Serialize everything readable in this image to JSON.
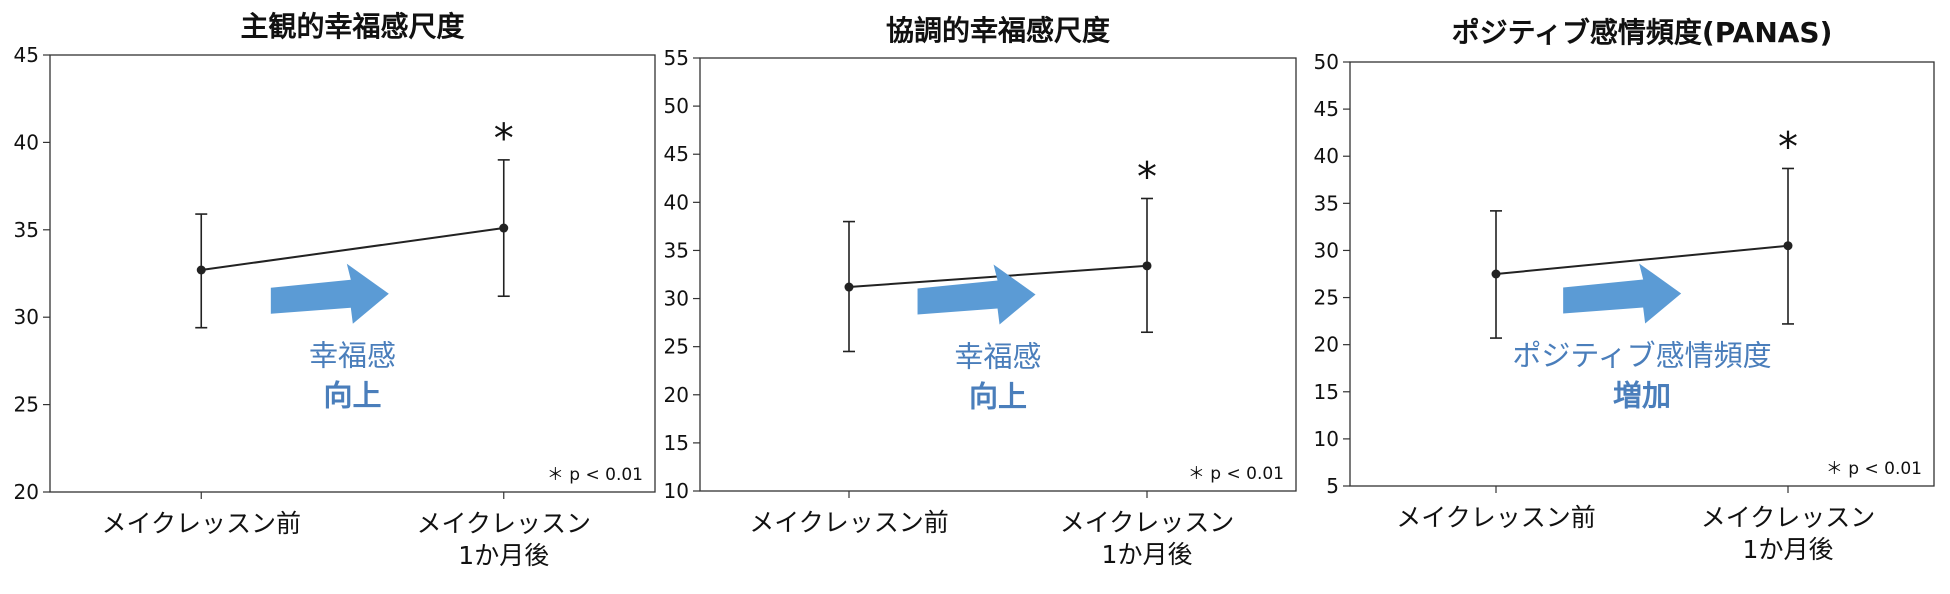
{
  "chart_data": [
    {
      "type": "line",
      "title": "主観的幸福感尺度",
      "categories": [
        [
          "メイクレッスン前"
        ],
        [
          "メイクレッスン",
          "1か月後"
        ]
      ],
      "values": [
        32.7,
        35.1
      ],
      "error_low": [
        29.4,
        31.2
      ],
      "error_high": [
        35.9,
        39.0
      ],
      "ylim": [
        20,
        45
      ],
      "yticks": [
        "20",
        "25",
        "30",
        "35",
        "40",
        "45"
      ],
      "significance": [
        "",
        "*"
      ],
      "annotation_lines": [
        "幸福感",
        "向上"
      ],
      "note": "＊ p < 0.01"
    },
    {
      "type": "line",
      "title": "協調的幸福感尺度",
      "categories": [
        [
          "メイクレッスン前"
        ],
        [
          "メイクレッスン",
          "1か月後"
        ]
      ],
      "values": [
        31.2,
        33.4
      ],
      "error_low": [
        24.5,
        26.5
      ],
      "error_high": [
        38.0,
        40.4
      ],
      "ylim": [
        10,
        55
      ],
      "yticks": [
        "10",
        "15",
        "20",
        "25",
        "30",
        "35",
        "40",
        "45",
        "50",
        "55"
      ],
      "significance": [
        "",
        "*"
      ],
      "annotation_lines": [
        "幸福感",
        "向上"
      ],
      "note": "＊ p < 0.01"
    },
    {
      "type": "line",
      "title": "ポジティブ感情頻度(PANAS)",
      "categories": [
        [
          "メイクレッスン前"
        ],
        [
          "メイクレッスン",
          "1か月後"
        ]
      ],
      "values": [
        27.5,
        30.5
      ],
      "error_low": [
        20.7,
        22.2
      ],
      "error_high": [
        34.2,
        38.7
      ],
      "ylim": [
        5,
        50
      ],
      "yticks": [
        "5",
        "10",
        "15",
        "20",
        "25",
        "30",
        "35",
        "40",
        "45",
        "50"
      ],
      "significance": [
        "",
        "*"
      ],
      "annotation_lines": [
        "ポジティブ感情頻度",
        "増加"
      ],
      "note": "＊ p < 0.01"
    }
  ],
  "colors": {
    "line": "#222222",
    "arrow": "#5b9bd5",
    "annotation": "#4a7ebb",
    "axis": "#333333",
    "text": "#111111"
  }
}
